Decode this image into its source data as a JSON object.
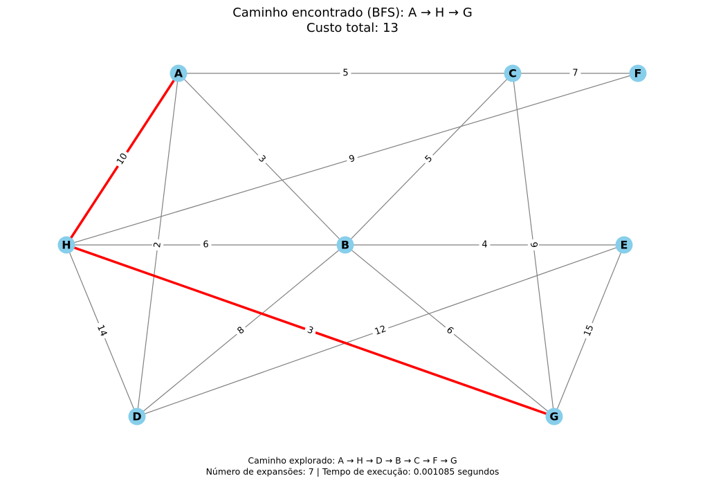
{
  "title": {
    "line1": "Caminho encontrado (BFS): A → H → G",
    "line2": "Custo total: 13"
  },
  "footer": {
    "line1": "Caminho explorado: A → H → D → B → C → F → G",
    "line2": "Número de expansões: 7 | Tempo de execução: 0.001085 segundos"
  },
  "colors": {
    "node_fill": "#87CEEB",
    "edge": "#808080",
    "path_edge": "#FF0000",
    "text": "#000000"
  },
  "graph": {
    "nodes": [
      "A",
      "C",
      "F",
      "H",
      "B",
      "E",
      "D",
      "G"
    ],
    "edges": [
      {
        "from": "A",
        "to": "C",
        "weight": "5",
        "on_path": false
      },
      {
        "from": "C",
        "to": "F",
        "weight": "7",
        "on_path": false
      },
      {
        "from": "A",
        "to": "B",
        "weight": "3",
        "on_path": false
      },
      {
        "from": "A",
        "to": "D",
        "weight": "2",
        "on_path": false
      },
      {
        "from": "H",
        "to": "F",
        "weight": "9",
        "on_path": false
      },
      {
        "from": "C",
        "to": "B",
        "weight": "5",
        "on_path": false
      },
      {
        "from": "C",
        "to": "G",
        "weight": "9",
        "on_path": false
      },
      {
        "from": "H",
        "to": "B",
        "weight": "6",
        "on_path": false
      },
      {
        "from": "B",
        "to": "E",
        "weight": "4",
        "on_path": false
      },
      {
        "from": "H",
        "to": "D",
        "weight": "14",
        "on_path": false
      },
      {
        "from": "B",
        "to": "D",
        "weight": "8",
        "on_path": false
      },
      {
        "from": "E",
        "to": "D",
        "weight": "12",
        "on_path": false
      },
      {
        "from": "B",
        "to": "G",
        "weight": "6",
        "on_path": false
      },
      {
        "from": "E",
        "to": "G",
        "weight": "15",
        "on_path": false
      },
      {
        "from": "A",
        "to": "H",
        "weight": "10",
        "on_path": true
      },
      {
        "from": "H",
        "to": "G",
        "weight": "3",
        "on_path": true
      }
    ]
  }
}
